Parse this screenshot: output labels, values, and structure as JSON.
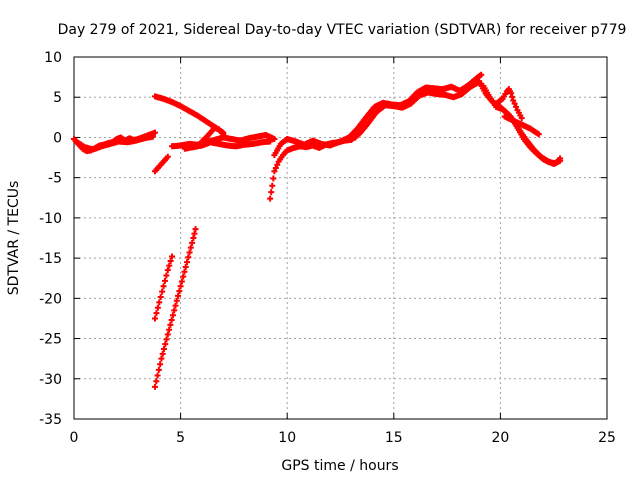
{
  "chart_data": {
    "type": "scatter",
    "title": "Day 279 of 2021, Sidereal Day-to-day VTEC variation (SDTVAR) for receiver p779",
    "xlabel": "GPS time / hours",
    "ylabel": "SDTVAR / TECUs",
    "xlim": [
      0,
      25
    ],
    "ylim": [
      -35,
      10
    ],
    "xticks": [
      0,
      5,
      10,
      15,
      20,
      25
    ],
    "yticks": [
      -35,
      -30,
      -25,
      -20,
      -15,
      -10,
      -5,
      0,
      5,
      10
    ],
    "grid": true,
    "marker": "plus",
    "color": "#ff0000",
    "series": [
      {
        "x": [
          0.0,
          0.2,
          0.4,
          0.6,
          0.8,
          1.0,
          1.2,
          1.4,
          1.6,
          1.8,
          2.0,
          2.2,
          2.4,
          2.6,
          2.8,
          3.0,
          3.2,
          3.4,
          3.6,
          3.8
        ],
        "y": [
          -0.2,
          -0.8,
          -1.4,
          -1.7,
          -1.6,
          -1.3,
          -1.0,
          -0.9,
          -0.7,
          -0.6,
          -0.2,
          0.0,
          -0.4,
          -0.1,
          -0.3,
          -0.2,
          0.0,
          0.2,
          0.4,
          0.6
        ]
      },
      {
        "x": [
          0.1,
          0.5,
          0.9,
          1.3,
          1.7,
          2.1,
          2.5,
          2.9,
          3.3,
          3.7
        ],
        "y": [
          -0.5,
          -1.2,
          -1.5,
          -1.1,
          -0.8,
          -0.5,
          -0.6,
          -0.4,
          -0.1,
          0.1
        ]
      },
      {
        "x": [
          3.8,
          4.0,
          4.2,
          4.4
        ],
        "y": [
          -4.2,
          -3.6,
          -3.0,
          -2.4
        ]
      },
      {
        "x": [
          3.8,
          4.2,
          4.6,
          5.0,
          5.4,
          5.8,
          6.2,
          6.6,
          7.0
        ],
        "y": [
          5.1,
          4.8,
          4.4,
          3.9,
          3.3,
          2.7,
          2.0,
          1.3,
          0.6
        ]
      },
      {
        "x": [
          4.6,
          5.0,
          5.4,
          5.8,
          6.2,
          6.6,
          7.0,
          7.4,
          7.8,
          8.2,
          8.6,
          9.0,
          9.4
        ],
        "y": [
          -1.1,
          -1.0,
          -0.8,
          -0.9,
          -0.6,
          -0.3,
          0.0,
          -0.2,
          -0.4,
          -0.1,
          0.1,
          0.3,
          -0.2
        ]
      },
      {
        "x": [
          5.2,
          5.6,
          6.0,
          6.4,
          6.8,
          7.2,
          7.6,
          8.0,
          8.4,
          8.8,
          9.2
        ],
        "y": [
          -1.4,
          -1.2,
          -1.0,
          -0.6,
          -0.8,
          -1.0,
          -1.1,
          -0.9,
          -0.8,
          -0.6,
          -0.5
        ]
      },
      {
        "x": [
          6.0,
          6.2,
          6.4,
          6.6,
          6.8,
          7.0
        ],
        "y": [
          -0.5,
          0.0,
          0.6,
          1.2,
          1.0,
          0.4
        ]
      },
      {
        "x": [
          3.8,
          4.0,
          4.2,
          4.4,
          4.6
        ],
        "y": [
          -22.5,
          -20.5,
          -18.5,
          -16.5,
          -14.8
        ]
      },
      {
        "x": [
          3.8,
          4.1,
          4.4,
          4.7,
          5.0,
          5.3,
          5.6,
          5.7
        ],
        "y": [
          -31.0,
          -27.5,
          -24.5,
          -21.5,
          -18.5,
          -15.5,
          -12.5,
          -11.4
        ]
      },
      {
        "x": [
          9.2,
          9.3,
          9.4,
          9.6,
          9.8,
          10.0,
          10.3,
          10.6,
          10.9,
          11.2,
          11.5,
          11.8,
          12.1,
          12.4,
          12.7,
          13.0
        ],
        "y": [
          -7.6,
          -6.0,
          -4.2,
          -3.0,
          -2.2,
          -1.6,
          -1.3,
          -1.1,
          -1.2,
          -1.0,
          -1.3,
          -0.9,
          -0.7,
          -0.6,
          -0.4,
          -0.3
        ]
      },
      {
        "x": [
          9.4,
          9.7,
          10.0,
          10.4,
          10.8,
          11.2,
          11.6,
          12.0,
          12.4,
          12.8,
          13.2
        ],
        "y": [
          -2.2,
          -0.8,
          -0.2,
          -0.5,
          -0.9,
          -0.4,
          -0.8,
          -1.0,
          -0.6,
          -0.2,
          0.0
        ]
      },
      {
        "x": [
          12.5,
          12.9,
          13.3,
          13.7,
          14.1,
          14.5,
          14.9,
          15.3,
          15.7,
          16.1,
          16.5,
          16.9,
          17.3,
          17.7,
          18.1,
          18.5,
          18.9,
          19.1
        ],
        "y": [
          -0.5,
          0.0,
          1.1,
          2.5,
          3.8,
          4.3,
          4.1,
          4.0,
          4.5,
          5.6,
          6.2,
          6.1,
          6.0,
          6.3,
          5.8,
          6.5,
          7.4,
          7.8
        ]
      },
      {
        "x": [
          13.0,
          13.4,
          13.8,
          14.2,
          14.6,
          15.0,
          15.4,
          15.8,
          16.2,
          16.6,
          17.0,
          17.4,
          17.8,
          18.2,
          18.6,
          19.0
        ],
        "y": [
          -0.3,
          0.5,
          1.8,
          3.2,
          4.0,
          3.9,
          3.7,
          4.2,
          5.2,
          5.6,
          5.4,
          5.3,
          5.0,
          5.4,
          6.3,
          6.9
        ]
      },
      {
        "x": [
          19.0,
          19.3,
          19.6,
          19.9,
          20.2,
          20.5,
          20.8,
          21.1,
          21.4,
          21.7,
          22.0,
          22.3,
          22.6,
          22.8
        ],
        "y": [
          7.0,
          5.5,
          4.5,
          4.0,
          3.3,
          2.5,
          1.2,
          -0.2,
          -1.2,
          -2.0,
          -2.7,
          -3.1,
          -3.2,
          -2.6
        ]
      },
      {
        "x": [
          19.2,
          19.5,
          19.8,
          20.1,
          20.4,
          20.7,
          21.0,
          21.3,
          21.6,
          21.9,
          22.2,
          22.5,
          22.8
        ],
        "y": [
          6.4,
          5.0,
          3.8,
          3.5,
          2.8,
          1.8,
          0.5,
          -0.6,
          -1.6,
          -2.4,
          -2.9,
          -3.3,
          -2.9
        ]
      },
      {
        "x": [
          19.8,
          20.1,
          20.3,
          20.4,
          20.5,
          20.6,
          20.8,
          21.0
        ],
        "y": [
          4.2,
          4.8,
          5.7,
          6.0,
          5.5,
          4.6,
          3.4,
          2.4
        ]
      },
      {
        "x": [
          20.2,
          20.6,
          21.0,
          21.4,
          21.8
        ],
        "y": [
          2.6,
          2.1,
          1.6,
          1.1,
          0.4
        ]
      }
    ]
  }
}
